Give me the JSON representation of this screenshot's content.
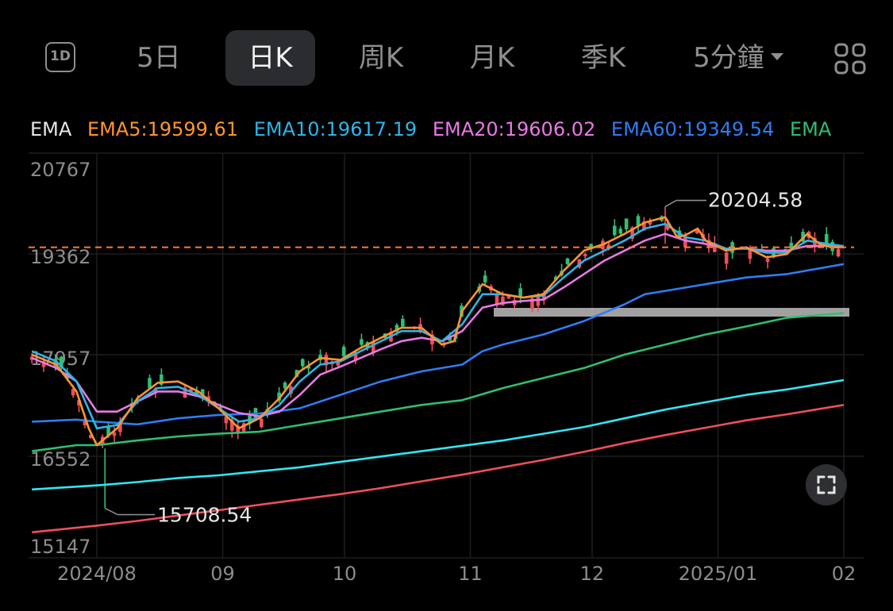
{
  "toolbar": {
    "oneday_label": "1D",
    "tabs": [
      "5日",
      "日K",
      "周K",
      "月K",
      "季K"
    ],
    "active_tab": "日K",
    "interval_label": "5分鐘"
  },
  "legend": {
    "title": "EMA",
    "items": [
      {
        "label": "EMA5:19599.61",
        "color": "#ff9430"
      },
      {
        "label": "EMA10:19617.19",
        "color": "#2fb4e8"
      },
      {
        "label": "EMA20:19606.02",
        "color": "#e879e5"
      },
      {
        "label": "EMA60:19349.54",
        "color": "#2f7cf2"
      },
      {
        "label": "EMA",
        "color": "#2fbf71"
      }
    ]
  },
  "colors": {
    "up": "#2fbf71",
    "down": "#f04e5b",
    "dashed_line": "#ff7a2f",
    "ema5": "#ff9430",
    "ema10": "#2fb4e8",
    "ema20": "#e879e5",
    "ema60": "#2f7cf2",
    "ema120": "#2fbf71",
    "ema250": "#33e6f0",
    "ema_long": "#f04e5b"
  },
  "chart_data": {
    "type": "line",
    "y_ticks": [
      "20767",
      "19362",
      "17957",
      "16552",
      "15147"
    ],
    "ylim": [
      15147,
      20767
    ],
    "x_ticks": [
      "2024/08",
      "09",
      "10",
      "11",
      "12",
      "2025/01",
      "02"
    ],
    "x_tick_days": [
      0,
      31,
      61,
      92,
      122,
      153,
      184
    ],
    "max_annotation": {
      "label": "20204.58",
      "day": 140,
      "value": 20204.58
    },
    "min_annotation": {
      "label": "15708.54",
      "day": 2,
      "value": 15708.54
    },
    "reference_level": 19599.61,
    "series": [
      {
        "name": "EMA5",
        "color_key": "ema5",
        "points": [
          [
            -16,
            18000
          ],
          [
            -10,
            17850
          ],
          [
            -5,
            17450
          ],
          [
            -2,
            16900
          ],
          [
            0,
            16650
          ],
          [
            5,
            16900
          ],
          [
            10,
            17350
          ],
          [
            15,
            17580
          ],
          [
            20,
            17600
          ],
          [
            25,
            17450
          ],
          [
            30,
            17200
          ],
          [
            35,
            16900
          ],
          [
            40,
            17050
          ],
          [
            45,
            17350
          ],
          [
            50,
            17750
          ],
          [
            55,
            17950
          ],
          [
            60,
            17920
          ],
          [
            65,
            18100
          ],
          [
            70,
            18250
          ],
          [
            75,
            18400
          ],
          [
            80,
            18400
          ],
          [
            85,
            18150
          ],
          [
            88,
            18200
          ],
          [
            90,
            18650
          ],
          [
            95,
            19050
          ],
          [
            100,
            18900
          ],
          [
            105,
            18850
          ],
          [
            110,
            18900
          ],
          [
            115,
            19250
          ],
          [
            120,
            19550
          ],
          [
            125,
            19650
          ],
          [
            130,
            19800
          ],
          [
            135,
            19970
          ],
          [
            140,
            20050
          ],
          [
            143,
            19750
          ],
          [
            145,
            19780
          ],
          [
            148,
            19880
          ],
          [
            150,
            19700
          ],
          [
            155,
            19550
          ],
          [
            160,
            19600
          ],
          [
            165,
            19450
          ],
          [
            170,
            19500
          ],
          [
            175,
            19800
          ],
          [
            178,
            19650
          ],
          [
            181,
            19600
          ],
          [
            184,
            19599.61
          ]
        ]
      },
      {
        "name": "EMA10",
        "color_key": "ema10",
        "points": [
          [
            -16,
            18050
          ],
          [
            -10,
            17900
          ],
          [
            -5,
            17600
          ],
          [
            0,
            16900
          ],
          [
            5,
            16950
          ],
          [
            10,
            17300
          ],
          [
            15,
            17500
          ],
          [
            20,
            17520
          ],
          [
            25,
            17400
          ],
          [
            30,
            17200
          ],
          [
            35,
            17000
          ],
          [
            40,
            17050
          ],
          [
            45,
            17250
          ],
          [
            50,
            17600
          ],
          [
            55,
            17850
          ],
          [
            60,
            17900
          ],
          [
            65,
            18050
          ],
          [
            70,
            18200
          ],
          [
            75,
            18350
          ],
          [
            80,
            18350
          ],
          [
            85,
            18200
          ],
          [
            90,
            18450
          ],
          [
            95,
            18900
          ],
          [
            100,
            18900
          ],
          [
            105,
            18850
          ],
          [
            110,
            18880
          ],
          [
            115,
            19150
          ],
          [
            120,
            19400
          ],
          [
            125,
            19550
          ],
          [
            130,
            19700
          ],
          [
            135,
            19880
          ],
          [
            140,
            19950
          ],
          [
            145,
            19750
          ],
          [
            150,
            19700
          ],
          [
            155,
            19580
          ],
          [
            160,
            19580
          ],
          [
            165,
            19520
          ],
          [
            170,
            19520
          ],
          [
            175,
            19700
          ],
          [
            180,
            19650
          ],
          [
            184,
            19617.19
          ]
        ]
      },
      {
        "name": "EMA20",
        "color_key": "ema20",
        "points": [
          [
            -16,
            17950
          ],
          [
            -10,
            17800
          ],
          [
            -5,
            17600
          ],
          [
            0,
            17150
          ],
          [
            5,
            17150
          ],
          [
            10,
            17300
          ],
          [
            15,
            17450
          ],
          [
            20,
            17450
          ],
          [
            25,
            17380
          ],
          [
            30,
            17250
          ],
          [
            35,
            17130
          ],
          [
            40,
            17080
          ],
          [
            45,
            17150
          ],
          [
            50,
            17400
          ],
          [
            55,
            17700
          ],
          [
            60,
            17820
          ],
          [
            65,
            17950
          ],
          [
            70,
            18080
          ],
          [
            75,
            18200
          ],
          [
            80,
            18250
          ],
          [
            85,
            18200
          ],
          [
            90,
            18350
          ],
          [
            95,
            18700
          ],
          [
            100,
            18770
          ],
          [
            105,
            18800
          ],
          [
            110,
            18820
          ],
          [
            115,
            19000
          ],
          [
            120,
            19200
          ],
          [
            125,
            19400
          ],
          [
            130,
            19550
          ],
          [
            135,
            19700
          ],
          [
            140,
            19800
          ],
          [
            145,
            19700
          ],
          [
            150,
            19650
          ],
          [
            155,
            19580
          ],
          [
            160,
            19580
          ],
          [
            165,
            19550
          ],
          [
            170,
            19550
          ],
          [
            175,
            19620
          ],
          [
            180,
            19620
          ],
          [
            184,
            19606.02
          ]
        ]
      },
      {
        "name": "EMA60",
        "color_key": "ema60",
        "points": [
          [
            -16,
            17000
          ],
          [
            -5,
            17030
          ],
          [
            0,
            17000
          ],
          [
            10,
            16960
          ],
          [
            20,
            17050
          ],
          [
            30,
            17100
          ],
          [
            40,
            17120
          ],
          [
            50,
            17200
          ],
          [
            60,
            17400
          ],
          [
            70,
            17600
          ],
          [
            80,
            17750
          ],
          [
            90,
            17850
          ],
          [
            95,
            18050
          ],
          [
            100,
            18150
          ],
          [
            110,
            18300
          ],
          [
            120,
            18500
          ],
          [
            130,
            18750
          ],
          [
            135,
            18900
          ],
          [
            140,
            18950
          ],
          [
            150,
            19050
          ],
          [
            160,
            19150
          ],
          [
            170,
            19200
          ],
          [
            184,
            19349.54
          ]
        ]
      },
      {
        "name": "EMA120",
        "color_key": "ema120",
        "points": [
          [
            -16,
            16560
          ],
          [
            -5,
            16650
          ],
          [
            0,
            16650
          ],
          [
            10,
            16720
          ],
          [
            20,
            16780
          ],
          [
            30,
            16820
          ],
          [
            40,
            16850
          ],
          [
            50,
            16950
          ],
          [
            60,
            17050
          ],
          [
            70,
            17150
          ],
          [
            80,
            17250
          ],
          [
            90,
            17320
          ],
          [
            100,
            17500
          ],
          [
            110,
            17650
          ],
          [
            120,
            17800
          ],
          [
            130,
            18000
          ],
          [
            140,
            18150
          ],
          [
            150,
            18300
          ],
          [
            160,
            18420
          ],
          [
            170,
            18550
          ],
          [
            184,
            18620
          ]
        ]
      },
      {
        "name": "EMA250",
        "color_key": "ema250",
        "points": [
          [
            -16,
            15990
          ],
          [
            0,
            16050
          ],
          [
            10,
            16100
          ],
          [
            20,
            16160
          ],
          [
            30,
            16200
          ],
          [
            40,
            16260
          ],
          [
            50,
            16320
          ],
          [
            60,
            16400
          ],
          [
            70,
            16480
          ],
          [
            80,
            16560
          ],
          [
            90,
            16640
          ],
          [
            100,
            16720
          ],
          [
            110,
            16820
          ],
          [
            120,
            16920
          ],
          [
            130,
            17050
          ],
          [
            140,
            17180
          ],
          [
            150,
            17290
          ],
          [
            160,
            17400
          ],
          [
            170,
            17480
          ],
          [
            184,
            17620
          ]
        ]
      },
      {
        "name": "",
        "color_key": "ema_long",
        "points": [
          [
            -16,
            15350
          ],
          [
            0,
            15450
          ],
          [
            10,
            15520
          ],
          [
            20,
            15600
          ],
          [
            30,
            15680
          ],
          [
            40,
            15760
          ],
          [
            50,
            15840
          ],
          [
            60,
            15920
          ],
          [
            70,
            16010
          ],
          [
            80,
            16110
          ],
          [
            90,
            16210
          ],
          [
            100,
            16320
          ],
          [
            110,
            16430
          ],
          [
            120,
            16550
          ],
          [
            130,
            16680
          ],
          [
            140,
            16800
          ],
          [
            150,
            16910
          ],
          [
            160,
            17020
          ],
          [
            170,
            17110
          ],
          [
            184,
            17250
          ]
        ]
      }
    ]
  }
}
